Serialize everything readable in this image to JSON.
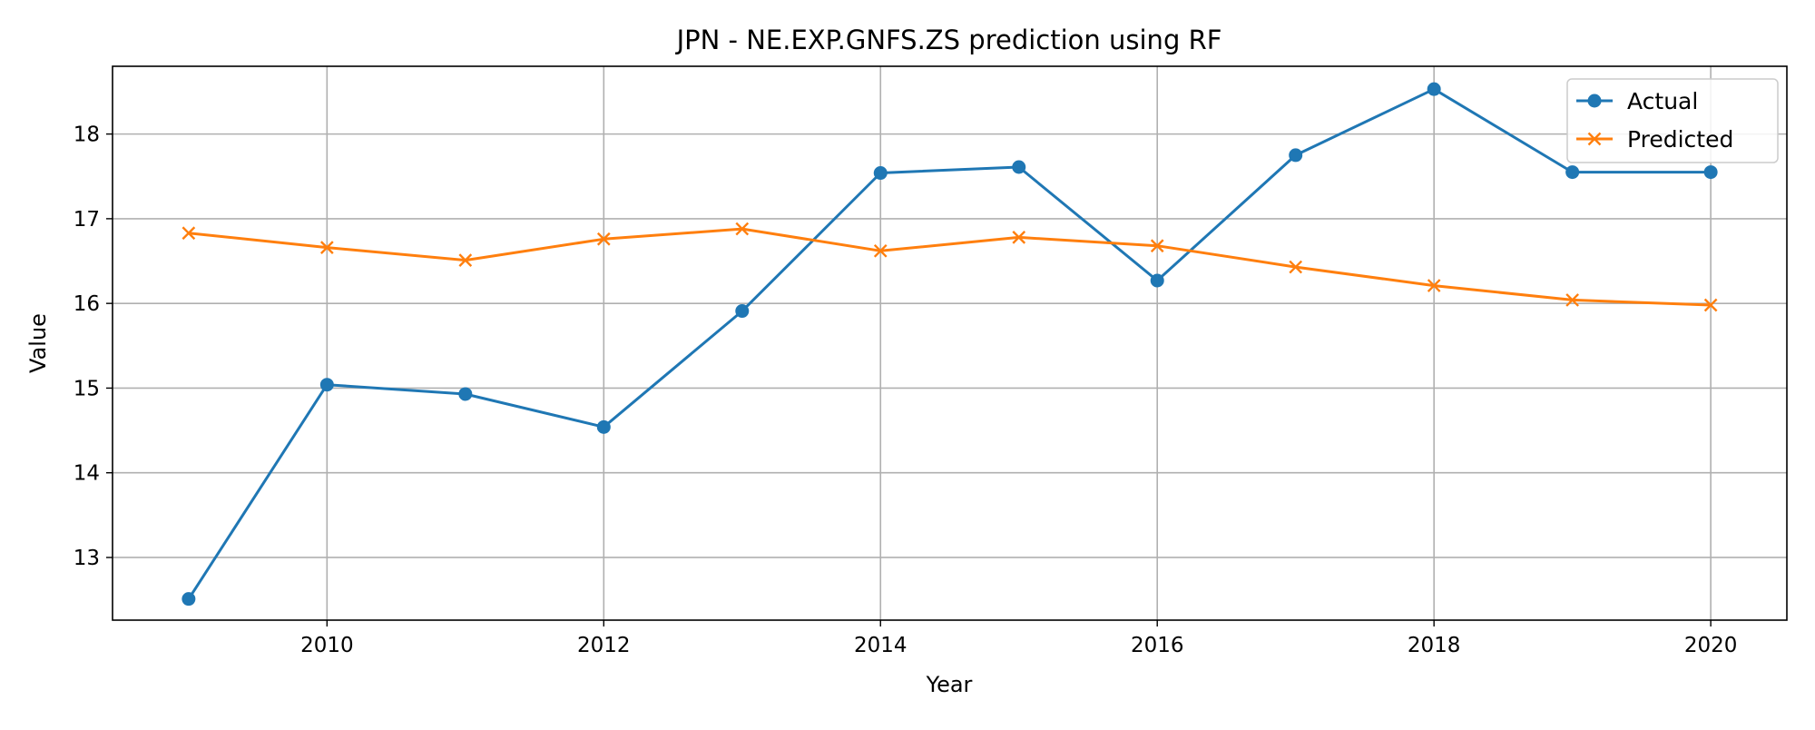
{
  "chart_data": {
    "type": "line",
    "title": "JPN - NE.EXP.GNFS.ZS prediction using RF",
    "xlabel": "Year",
    "ylabel": "Value",
    "x": [
      2009,
      2010,
      2011,
      2012,
      2013,
      2014,
      2015,
      2016,
      2017,
      2018,
      2019,
      2020
    ],
    "xlim": [
      2008.45,
      2020.55
    ],
    "ylim": [
      12.26,
      18.8
    ],
    "x_ticks": [
      2010,
      2012,
      2014,
      2016,
      2018,
      2020
    ],
    "y_ticks": [
      13,
      14,
      15,
      16,
      17,
      18
    ],
    "grid": true,
    "legend_position": "top-right",
    "series": [
      {
        "name": "Actual",
        "color": "#1f77b4",
        "marker": "circle",
        "values": [
          12.51,
          15.04,
          14.93,
          14.54,
          15.91,
          17.54,
          17.61,
          16.27,
          17.75,
          18.53,
          17.55,
          17.55
        ]
      },
      {
        "name": "Predicted",
        "color": "#ff7f0e",
        "marker": "x",
        "values": [
          16.83,
          16.66,
          16.51,
          16.76,
          16.88,
          16.62,
          16.78,
          16.68,
          16.43,
          16.21,
          16.04,
          15.98
        ]
      }
    ]
  }
}
